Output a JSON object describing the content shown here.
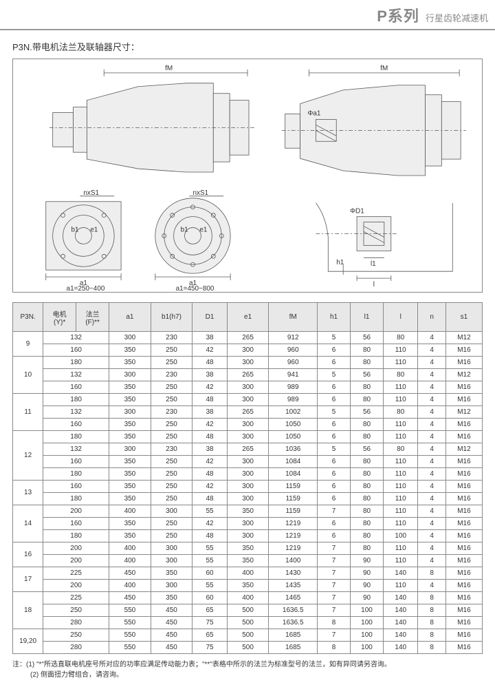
{
  "header": {
    "series": "P系列",
    "desc": "行星齿轮减速机"
  },
  "section_title": "P3N.带电机法兰及联轴器尺寸：",
  "diagram": {
    "top_labels": {
      "fm_left": "fM",
      "fm_right": "fM"
    },
    "flange_labels": {
      "nxs1": "nxS1",
      "b1": "b1",
      "e1": "e1",
      "a1": "a1",
      "phi_d1": "ΦD1",
      "h1": "h1",
      "l1": "l1",
      "l": "l"
    },
    "caption_left": "a1=250~400",
    "caption_right": "a1=450~800"
  },
  "table": {
    "headers": [
      "P3N.",
      "电机\n(Y)*",
      "法兰\n(F)**",
      "a1",
      "b1(h7)",
      "D1",
      "e1",
      "fM",
      "h1",
      "l1",
      "l",
      "n",
      "s1"
    ],
    "col_widths": [
      "35",
      "38",
      "38",
      "48",
      "48",
      "40",
      "48",
      "56",
      "38",
      "38",
      "40",
      "32",
      "42"
    ],
    "groups": [
      {
        "p3n": "9",
        "rows": [
          [
            "132",
            "",
            "300",
            "230",
            "38",
            "265",
            "912",
            "5",
            "56",
            "80",
            "4",
            "M12"
          ],
          [
            "160",
            "",
            "350",
            "250",
            "42",
            "300",
            "960",
            "6",
            "80",
            "110",
            "4",
            "M16"
          ]
        ]
      },
      {
        "p3n": "10",
        "rows": [
          [
            "180",
            "",
            "350",
            "250",
            "48",
            "300",
            "960",
            "6",
            "80",
            "110",
            "4",
            "M16"
          ],
          [
            "132",
            "",
            "300",
            "230",
            "38",
            "265",
            "941",
            "5",
            "56",
            "80",
            "4",
            "M12"
          ],
          [
            "160",
            "",
            "350",
            "250",
            "42",
            "300",
            "989",
            "6",
            "80",
            "110",
            "4",
            "M16"
          ]
        ]
      },
      {
        "p3n": "11",
        "rows": [
          [
            "180",
            "",
            "350",
            "250",
            "48",
            "300",
            "989",
            "6",
            "80",
            "110",
            "4",
            "M16"
          ],
          [
            "132",
            "",
            "300",
            "230",
            "38",
            "265",
            "1002",
            "5",
            "56",
            "80",
            "4",
            "M12"
          ],
          [
            "160",
            "",
            "350",
            "250",
            "42",
            "300",
            "1050",
            "6",
            "80",
            "110",
            "4",
            "M16"
          ]
        ]
      },
      {
        "p3n": "12",
        "rows": [
          [
            "180",
            "",
            "350",
            "250",
            "48",
            "300",
            "1050",
            "6",
            "80",
            "110",
            "4",
            "M16"
          ],
          [
            "132",
            "",
            "300",
            "230",
            "38",
            "265",
            "1036",
            "5",
            "56",
            "80",
            "4",
            "M12"
          ],
          [
            "160",
            "",
            "350",
            "250",
            "42",
            "300",
            "1084",
            "6",
            "80",
            "110",
            "4",
            "M16"
          ],
          [
            "180",
            "",
            "350",
            "250",
            "48",
            "300",
            "1084",
            "6",
            "80",
            "110",
            "4",
            "M16"
          ]
        ]
      },
      {
        "p3n": "13",
        "rows": [
          [
            "160",
            "",
            "350",
            "250",
            "42",
            "300",
            "1159",
            "6",
            "80",
            "110",
            "4",
            "M16"
          ],
          [
            "180",
            "",
            "350",
            "250",
            "48",
            "300",
            "1159",
            "6",
            "80",
            "110",
            "4",
            "M16"
          ]
        ]
      },
      {
        "p3n": "14",
        "rows": [
          [
            "200",
            "",
            "400",
            "300",
            "55",
            "350",
            "1159",
            "7",
            "80",
            "110",
            "4",
            "M16"
          ],
          [
            "160",
            "",
            "350",
            "250",
            "42",
            "300",
            "1219",
            "6",
            "80",
            "110",
            "4",
            "M16"
          ],
          [
            "180",
            "",
            "350",
            "250",
            "48",
            "300",
            "1219",
            "6",
            "80",
            "100",
            "4",
            "M16"
          ]
        ]
      },
      {
        "p3n": "16",
        "rows": [
          [
            "200",
            "",
            "400",
            "300",
            "55",
            "350",
            "1219",
            "7",
            "80",
            "110",
            "4",
            "M16"
          ],
          [
            "200",
            "",
            "400",
            "300",
            "55",
            "350",
            "1400",
            "7",
            "90",
            "110",
            "4",
            "M16"
          ]
        ]
      },
      {
        "p3n": "17",
        "rows": [
          [
            "225",
            "",
            "450",
            "350",
            "60",
            "400",
            "1430",
            "7",
            "90",
            "140",
            "8",
            "M16"
          ],
          [
            "200",
            "",
            "400",
            "300",
            "55",
            "350",
            "1435",
            "7",
            "90",
            "110",
            "4",
            "M16"
          ]
        ]
      },
      {
        "p3n": "18",
        "rows": [
          [
            "225",
            "",
            "450",
            "350",
            "60",
            "400",
            "1465",
            "7",
            "90",
            "140",
            "8",
            "M16"
          ],
          [
            "250",
            "",
            "550",
            "450",
            "65",
            "500",
            "1636.5",
            "7",
            "100",
            "140",
            "8",
            "M16"
          ],
          [
            "280",
            "",
            "550",
            "450",
            "75",
            "500",
            "1636.5",
            "8",
            "100",
            "140",
            "8",
            "M16"
          ]
        ]
      },
      {
        "p3n": "19,20",
        "rows": [
          [
            "250",
            "",
            "550",
            "450",
            "65",
            "500",
            "1685",
            "7",
            "100",
            "140",
            "8",
            "M16"
          ],
          [
            "280",
            "",
            "550",
            "450",
            "75",
            "500",
            "1685",
            "8",
            "100",
            "140",
            "8",
            "M16"
          ]
        ]
      }
    ]
  },
  "notes": {
    "line1": "注：(1)  \"*\"所选直联电机座号所对应的功率应满足传动能力表；\"**\"表格中所示的法兰为标准型号的法兰，如有异同请另咨询。",
    "line2": "(2) 侧面扭力臂组合，请咨询。"
  },
  "style": {
    "header_color": "#888888",
    "border_color": "#888888",
    "thead_bg": "#e8e8e8",
    "body_bg": "#ffffff"
  }
}
